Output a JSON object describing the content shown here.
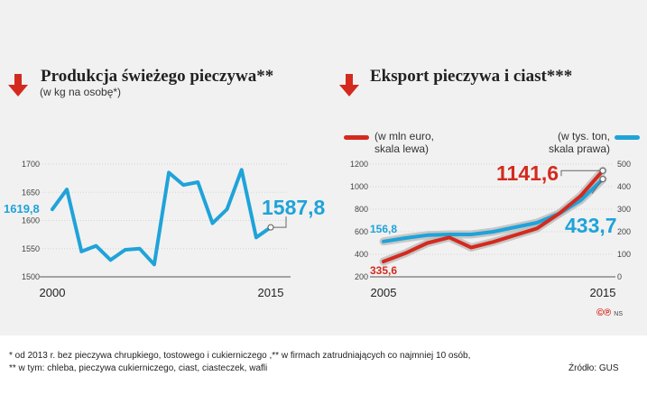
{
  "colors": {
    "blue": "#1fa3d9",
    "red": "#d42a1e",
    "grey_line": "#bdbdbd",
    "background": "#f1f1f1"
  },
  "left": {
    "title": "Produkcja świeżego pieczywa**",
    "subtitle": "(w kg na osobę*)"
  },
  "right": {
    "title": "Eksport pieczywa i ciast***",
    "legend_left": "(w mln euro,\nskala lewa)",
    "legend_right": "(w tys. ton,\nskala prawa)"
  },
  "chart_data": [
    {
      "type": "line",
      "title": "Produkcja świeżego pieczywa**",
      "subtitle": "(w kg na osobę*)",
      "x": [
        2000,
        2001,
        2002,
        2003,
        2004,
        2005,
        2006,
        2007,
        2008,
        2009,
        2010,
        2011,
        2012,
        2013,
        2014,
        2015
      ],
      "series": [
        {
          "name": "Produkcja",
          "color": "#1fa3d9",
          "values": [
            1619.8,
            1655,
            1545,
            1555,
            1530,
            1548,
            1550,
            1522,
            1685,
            1663,
            1668,
            1595,
            1620,
            1690,
            1570,
            1587.8
          ]
        }
      ],
      "ylim": [
        1500,
        1700
      ],
      "yticks": [
        1500,
        1550,
        1600,
        1650,
        1700
      ],
      "xticks": [
        2000,
        2015
      ],
      "annotations": {
        "start_label": "1619,8",
        "end_label": "1587,8"
      }
    },
    {
      "type": "line",
      "title": "Eksport pieczywa i ciast***",
      "x": [
        2005,
        2006,
        2007,
        2008,
        2009,
        2010,
        2011,
        2012,
        2013,
        2014,
        2015
      ],
      "series": [
        {
          "name": "(w mln euro, skala lewa)",
          "axis": "left",
          "color": "#d42a1e",
          "values": [
            335.6,
            410,
            500,
            550,
            460,
            510,
            570,
            630,
            760,
            920,
            1141.6
          ]
        },
        {
          "name": "(w tys. ton, skala prawa)",
          "axis": "right",
          "color": "#1fa3d9",
          "values": [
            156.8,
            172,
            185,
            188,
            188,
            200,
            220,
            240,
            280,
            340,
            433.7
          ]
        }
      ],
      "ylim_left": [
        200,
        1200
      ],
      "yticks_left": [
        200,
        400,
        600,
        800,
        1000,
        1200
      ],
      "ylim_right": [
        0,
        500
      ],
      "yticks_right": [
        0,
        100,
        200,
        300,
        400,
        500
      ],
      "xticks": [
        2005,
        2015
      ],
      "annotations": {
        "red_start": "335,6",
        "red_end": "1141,6",
        "blue_start": "156,8",
        "blue_end": "433,7"
      }
    }
  ],
  "footnotes": {
    "line1": "* od 2013 r.  bez pieczywa chrupkiego, tostowego i cukierniczego ,** w firmach zatrudniających co najmniej 10 osób,",
    "line2": "** w tym: chleba, pieczywa cukierniczego, ciast, ciasteczek, wafli",
    "source": "Źródło: GUS"
  },
  "credit": {
    "logo": "©℗",
    "initials": "NS"
  }
}
